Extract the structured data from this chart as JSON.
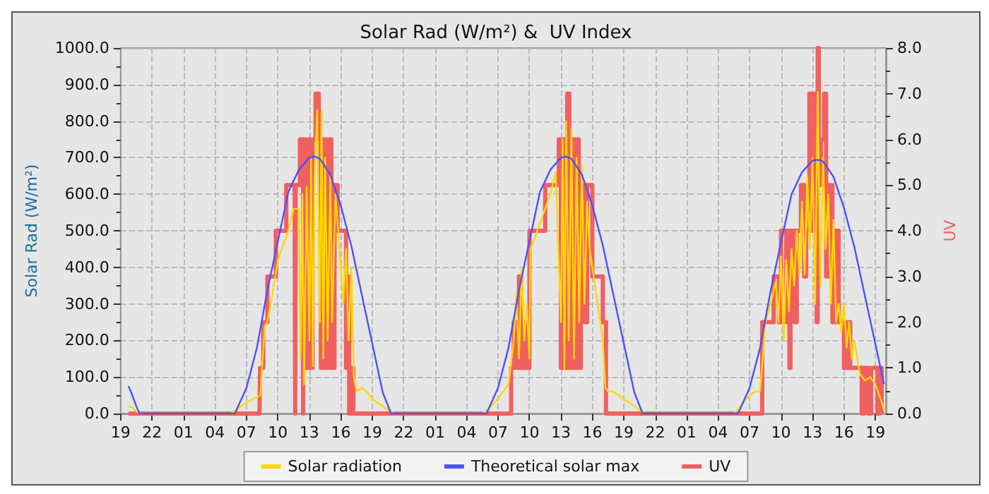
{
  "chart_data": {
    "type": "line",
    "title": "Solar Rad (W/m²) &  UV Index",
    "ylabel": "Solar Rad (W/m²)",
    "y2label": "UV",
    "xlim": [
      "--06-01T19:00",
      "--06-04T20:00"
    ],
    "xticks": [
      {
        "value": "--06-01T19:00",
        "label": "19"
      },
      {
        "value": "--06-01T22:00",
        "label": "22"
      },
      {
        "value": "--06-02T01:00",
        "label": "01"
      },
      {
        "value": "--06-02T04:00",
        "label": "04"
      },
      {
        "value": "--06-02T07:00",
        "label": "07"
      },
      {
        "value": "--06-02T10:00",
        "label": "10"
      },
      {
        "value": "--06-02T13:00",
        "label": "13"
      },
      {
        "value": "--06-02T16:00",
        "label": "16"
      },
      {
        "value": "--06-02T19:00",
        "label": "19"
      },
      {
        "value": "--06-02T22:00",
        "label": "22"
      },
      {
        "value": "--06-03T01:00",
        "label": "01"
      },
      {
        "value": "--06-03T04:00",
        "label": "04"
      },
      {
        "value": "--06-03T07:00",
        "label": "07"
      },
      {
        "value": "--06-03T10:00",
        "label": "10"
      },
      {
        "value": "--06-03T13:00",
        "label": "13"
      },
      {
        "value": "--06-03T16:00",
        "label": "16"
      },
      {
        "value": "--06-03T19:00",
        "label": "19"
      },
      {
        "value": "--06-03T22:00",
        "label": "22"
      },
      {
        "value": "--06-04T01:00",
        "label": "01"
      },
      {
        "value": "--06-04T04:00",
        "label": "04"
      },
      {
        "value": "--06-04T07:00",
        "label": "07"
      },
      {
        "value": "--06-04T10:00",
        "label": "10"
      },
      {
        "value": "--06-04T13:00",
        "label": "13"
      },
      {
        "value": "--06-04T16:00",
        "label": "16"
      },
      {
        "value": "--06-04T19:00",
        "label": "19"
      }
    ],
    "ylim": [
      0,
      1000
    ],
    "yticks": [
      {
        "value": 0,
        "label": "0.0"
      },
      {
        "value": 100,
        "label": "100.0"
      },
      {
        "value": 200,
        "label": "200.0"
      },
      {
        "value": 300,
        "label": "300.0"
      },
      {
        "value": 400,
        "label": "400.0"
      },
      {
        "value": 500,
        "label": "500.0"
      },
      {
        "value": 600,
        "label": "600.0"
      },
      {
        "value": 700,
        "label": "700.0"
      },
      {
        "value": 800,
        "label": "800.0"
      },
      {
        "value": 900,
        "label": "900.0"
      },
      {
        "value": 1000,
        "label": "1000.0"
      }
    ],
    "y2lim": [
      0,
      8
    ],
    "y2ticks": [
      {
        "value": 0,
        "label": "0.0"
      },
      {
        "value": 1,
        "label": "1.0"
      },
      {
        "value": 2,
        "label": "2.0"
      },
      {
        "value": 3,
        "label": "3.0"
      },
      {
        "value": 4,
        "label": "4.0"
      },
      {
        "value": 5,
        "label": "5.0"
      },
      {
        "value": 6,
        "label": "6.0"
      },
      {
        "value": 7,
        "label": "7.0"
      },
      {
        "value": 8,
        "label": "8.0"
      }
    ],
    "grid": true,
    "legend": "bottom",
    "marker": "none",
    "series": [
      {
        "name": "Solar radiation",
        "color": "#ffd700",
        "x": [
          "--06-01T19:45",
          "--06-01T20:12",
          "--06-01T20:30",
          "--06-01T21:00",
          "--06-02T05:30",
          "--06-02T06:00",
          "--06-02T07:00",
          "--06-02T08:00",
          "--06-02T08:20",
          "--06-02T08:30",
          "--06-02T08:45",
          "--06-02T09:00",
          "--06-02T09:30",
          "--06-02T10:00",
          "--06-02T10:30",
          "--06-02T11:00",
          "--06-02T11:30",
          "--06-02T12:00",
          "--06-02T12:10",
          "--06-02T12:20",
          "--06-02T12:30",
          "--06-02T12:45",
          "--06-02T13:00",
          "--06-02T13:10",
          "--06-02T13:20",
          "--06-02T13:30",
          "--06-02T13:45",
          "--06-02T14:00",
          "--06-02T14:10",
          "--06-02T14:20",
          "--06-02T14:30",
          "--06-02T14:45",
          "--06-02T15:00",
          "--06-02T15:10",
          "--06-02T15:30",
          "--06-02T15:45",
          "--06-02T16:00",
          "--06-02T16:15",
          "--06-02T16:30",
          "--06-02T16:45",
          "--06-02T17:00",
          "--06-02T17:15",
          "--06-02T17:30",
          "--06-02T18:00",
          "--06-02T18:30",
          "--06-02T19:00",
          "--06-02T19:30",
          "--06-02T20:00",
          "--06-02T20:30",
          "--06-02T21:00",
          "--06-03T05:30",
          "--06-03T06:00",
          "--06-03T07:00",
          "--06-03T07:30",
          "--06-03T08:00",
          "--06-03T08:30",
          "--06-03T08:45",
          "--06-03T09:00",
          "--06-03T09:15",
          "--06-03T09:30",
          "--06-03T09:45",
          "--06-03T10:00",
          "--06-03T10:05",
          "--06-03T10:30",
          "--06-03T11:00",
          "--06-03T11:30",
          "--06-03T12:00",
          "--06-03T12:30",
          "--06-03T13:00",
          "--06-03T13:10",
          "--06-03T13:20",
          "--06-03T13:30",
          "--06-03T13:45",
          "--06-03T14:00",
          "--06-03T14:15",
          "--06-03T14:30",
          "--06-03T14:45",
          "--06-03T15:00",
          "--06-03T15:15",
          "--06-03T15:30",
          "--06-03T15:45",
          "--06-03T16:00",
          "--06-03T16:30",
          "--06-03T17:00",
          "--06-03T17:15",
          "--06-03T17:30",
          "--06-03T18:00",
          "--06-03T19:00",
          "--06-03T20:00",
          "--06-03T21:00",
          "--06-04T05:30",
          "--06-04T06:00",
          "--06-04T07:00",
          "--06-04T07:30",
          "--06-04T08:00",
          "--06-04T08:15",
          "--06-04T08:30",
          "--06-04T09:00",
          "--06-04T09:30",
          "--06-04T09:45",
          "--06-04T10:00",
          "--06-04T10:15",
          "--06-04T10:30",
          "--06-04T10:45",
          "--06-04T11:00",
          "--06-04T11:15",
          "--06-04T11:30",
          "--06-04T11:45",
          "--06-04T12:00",
          "--06-04T12:15",
          "--06-04T12:30",
          "--06-04T12:45",
          "--06-04T13:00",
          "--06-04T13:15",
          "--06-04T13:30",
          "--06-04T13:45",
          "--06-04T14:00",
          "--06-04T14:15",
          "--06-04T14:30",
          "--06-04T14:45",
          "--06-04T15:00",
          "--06-04T15:15",
          "--06-04T15:30",
          "--06-04T15:45",
          "--06-04T16:00",
          "--06-04T16:15",
          "--06-04T16:30",
          "--06-04T16:45",
          "--06-04T17:00",
          "--06-04T17:30",
          "--06-04T18:00",
          "--06-04T18:30",
          "--06-04T19:00",
          "--06-04T19:30",
          "--06-04T19:50"
        ],
        "values": [
          20,
          15,
          5,
          0,
          0,
          10,
          30,
          45,
          50,
          130,
          240,
          250,
          330,
          420,
          460,
          500,
          560,
          560,
          150,
          600,
          80,
          620,
          200,
          700,
          130,
          650,
          830,
          250,
          830,
          150,
          700,
          200,
          650,
          250,
          600,
          500,
          400,
          300,
          450,
          200,
          400,
          100,
          60,
          70,
          60,
          40,
          30,
          20,
          10,
          0,
          0,
          10,
          40,
          60,
          80,
          200,
          330,
          150,
          400,
          200,
          300,
          150,
          450,
          480,
          520,
          560,
          600,
          660,
          250,
          750,
          120,
          800,
          200,
          780,
          150,
          700,
          250,
          680,
          300,
          580,
          450,
          400,
          300,
          200,
          70,
          60,
          60,
          40,
          20,
          0,
          0,
          15,
          50,
          60,
          60,
          150,
          250,
          300,
          360,
          250,
          430,
          200,
          420,
          280,
          450,
          350,
          500,
          380,
          580,
          380,
          650,
          450,
          700,
          300,
          880,
          350,
          700,
          450,
          600,
          300,
          530,
          250,
          300,
          220,
          300,
          180,
          250,
          150,
          200,
          110,
          90,
          100,
          80,
          40,
          10
        ]
      },
      {
        "name": "Theoretical solar max",
        "color": "#5050ff",
        "x": [
          "--06-01T19:45",
          "--06-01T20:00",
          "--06-01T20:30",
          "--06-01T20:48",
          "--06-02T05:54",
          "--06-02T07:00",
          "--06-02T08:00",
          "--06-02T09:00",
          "--06-02T10:00",
          "--06-02T11:00",
          "--06-02T12:00",
          "--06-02T13:00",
          "--06-02T13:30",
          "--06-02T14:00",
          "--06-02T15:00",
          "--06-02T16:00",
          "--06-02T17:00",
          "--06-02T18:00",
          "--06-02T19:00",
          "--06-02T20:00",
          "--06-02T20:48",
          "--06-03T05:54",
          "--06-03T07:00",
          "--06-03T08:00",
          "--06-03T09:00",
          "--06-03T10:00",
          "--06-03T11:00",
          "--06-03T12:00",
          "--06-03T13:00",
          "--06-03T13:30",
          "--06-03T14:00",
          "--06-03T15:00",
          "--06-03T16:00",
          "--06-03T17:00",
          "--06-03T18:00",
          "--06-03T19:00",
          "--06-03T20:00",
          "--06-03T20:48",
          "--06-04T05:54",
          "--06-04T07:00",
          "--06-04T08:00",
          "--06-04T09:00",
          "--06-04T10:00",
          "--06-04T11:00",
          "--06-04T12:00",
          "--06-04T13:00",
          "--06-04T13:30",
          "--06-04T14:00",
          "--06-04T15:00",
          "--06-04T16:00",
          "--06-04T17:00",
          "--06-04T18:00",
          "--06-04T19:00",
          "--06-04T19:50"
        ],
        "values": [
          75,
          58,
          20,
          0,
          0,
          70,
          180,
          338,
          472,
          606,
          667,
          700,
          703,
          697,
          654,
          569,
          460,
          326,
          192,
          58,
          0,
          0,
          70,
          180,
          338,
          472,
          606,
          667,
          700,
          703,
          697,
          654,
          569,
          460,
          326,
          192,
          58,
          0,
          0,
          70,
          180,
          335,
          468,
          600,
          660,
          692,
          694,
          690,
          648,
          563,
          455,
          322,
          190,
          80
        ]
      },
      {
        "name": "UV",
        "color": "#f06060",
        "type": "step",
        "axis": "y2",
        "x": [
          "--06-01T19:45",
          "--06-02T08:15",
          "--06-02T08:18",
          "--06-02T08:36",
          "--06-02T09:00",
          "--06-02T09:48",
          "--06-02T10:48",
          "--06-02T11:36",
          "--06-02T11:39",
          "--06-02T11:42",
          "--06-02T12:06",
          "--06-02T12:24",
          "--06-02T12:27",
          "--06-02T12:42",
          "--06-02T12:54",
          "--06-02T13:06",
          "--06-02T13:18",
          "--06-02T13:36",
          "--06-02T13:54",
          "--06-02T14:06",
          "--06-02T14:18",
          "--06-02T14:36",
          "--06-02T14:48",
          "--06-02T15:06",
          "--06-02T15:24",
          "--06-02T15:42",
          "--06-02T16:24",
          "--06-02T16:30",
          "--06-02T16:42",
          "--06-02T16:48",
          "--06-02T17:00",
          "--06-02T17:12",
          "--06-03T08:15",
          "--06-03T08:30",
          "--06-03T08:48",
          "--06-03T09:00",
          "--06-03T09:12",
          "--06-03T09:24",
          "--06-03T09:36",
          "--06-03T10:00",
          "--06-03T11:30",
          "--06-03T12:48",
          "--06-03T13:00",
          "--06-03T13:12",
          "--06-03T13:30",
          "--06-03T13:36",
          "--06-03T13:48",
          "--06-03T14:00",
          "--06-03T14:18",
          "--06-03T14:30",
          "--06-03T14:42",
          "--06-03T14:54",
          "--06-03T15:18",
          "--06-03T15:30",
          "--06-03T16:00",
          "--06-03T17:00",
          "--06-03T17:18",
          "--06-04T08:12",
          "--06-04T09:18",
          "--06-04T09:48",
          "--06-04T10:00",
          "--06-04T10:30",
          "--06-04T10:36",
          "--06-04T10:48",
          "--06-04T10:54",
          "--06-04T11:18",
          "--06-04T11:30",
          "--06-04T11:54",
          "--06-04T12:12",
          "--06-04T12:24",
          "--06-04T12:42",
          "--06-04T13:00",
          "--06-04T13:12",
          "--06-04T13:24",
          "--06-04T13:30",
          "--06-04T13:36",
          "--06-04T13:48",
          "--06-04T14:06",
          "--06-04T14:18",
          "--06-04T14:36",
          "--06-04T14:54",
          "--06-04T15:12",
          "--06-04T15:30",
          "--06-04T16:00",
          "--06-04T16:18",
          "--06-04T16:36",
          "--06-04T17:42",
          "--06-04T17:54",
          "--06-04T18:18",
          "--06-04T18:36",
          "--06-04T19:12",
          "--06-04T19:24",
          "--06-04T19:36"
        ],
        "values": [
          0,
          0,
          1,
          2,
          3,
          4,
          5,
          5,
          0,
          5,
          6,
          0,
          6,
          1,
          6,
          1,
          6,
          7,
          6,
          1,
          6,
          1,
          6,
          1,
          5,
          4,
          4,
          1,
          3,
          0,
          1,
          0,
          1,
          2,
          1,
          3,
          1,
          2,
          1,
          4,
          5,
          6,
          1,
          6,
          1,
          7,
          1,
          6,
          1,
          6,
          1,
          5,
          2,
          5,
          3,
          2,
          0,
          2,
          3,
          2,
          4,
          2,
          4,
          1,
          4,
          2,
          4,
          5,
          3,
          4,
          7,
          4,
          7,
          2,
          8,
          5,
          6,
          7,
          3,
          5,
          2,
          4,
          2,
          1,
          2,
          1,
          0,
          1,
          0,
          1,
          0,
          1,
          0
        ]
      }
    ]
  }
}
